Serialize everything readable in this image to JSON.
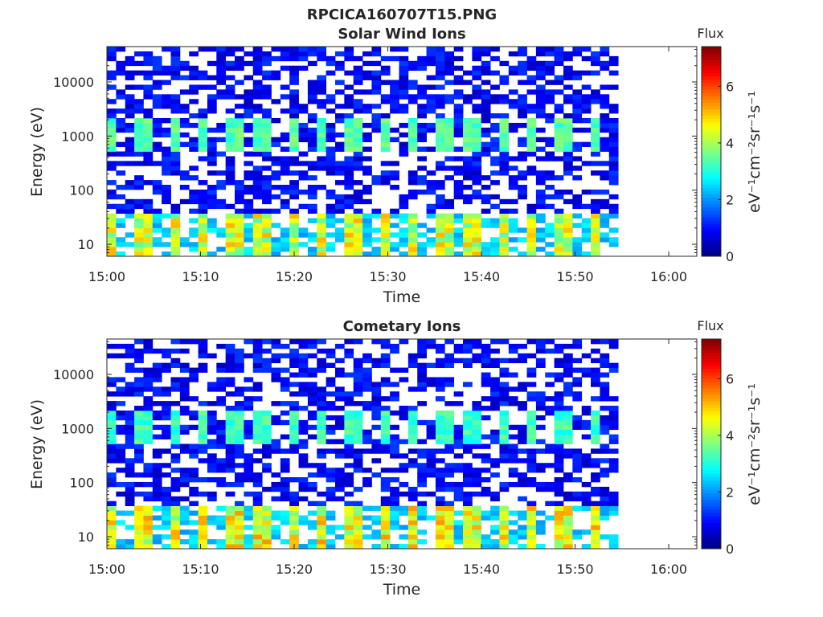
{
  "figure_title": "RPCICA160707T15.PNG",
  "chart_data": [
    {
      "type": "heatmap",
      "title": "Solar Wind Ions",
      "xlabel": "Time",
      "ylabel": "Energy (eV)",
      "x_tick_labels": [
        "15:00",
        "15:10",
        "15:20",
        "15:30",
        "15:40",
        "15:50",
        "16:00"
      ],
      "x_tick_minutes": [
        0,
        10,
        20,
        30,
        40,
        50,
        60
      ],
      "xlim_minutes": [
        0,
        63
      ],
      "data_end_minute": 54.6,
      "y_scale": "log",
      "y_tick_labels": [
        "10",
        "100",
        "1000",
        "10000"
      ],
      "y_tick_values": [
        10,
        100,
        1000,
        10000
      ],
      "ylim": [
        6,
        45000
      ],
      "colorbar": {
        "label": "Flux",
        "unit": "eV⁻¹cm⁻²sr⁻¹s⁻¹",
        "range": [
          0,
          7.4
        ],
        "tick_labels": [
          "0",
          "2",
          "4",
          "6"
        ],
        "tick_values": [
          0,
          2,
          4,
          6
        ],
        "colormap": "jet"
      },
      "pattern": {
        "burst_period_minutes": 3.2,
        "beam_1kev_energy_range": [
          500,
          2200
        ],
        "beam_1kev_peak_flux": 3.8,
        "low_energy_band_range": [
          6,
          35
        ],
        "low_energy_peak_flux": 5.2,
        "background_flux": 1.0
      }
    },
    {
      "type": "heatmap",
      "title": "Cometary Ions",
      "xlabel": "Time",
      "ylabel": "Energy (eV)",
      "x_tick_labels": [
        "15:00",
        "15:10",
        "15:20",
        "15:30",
        "15:40",
        "15:50",
        "16:00"
      ],
      "x_tick_minutes": [
        0,
        10,
        20,
        30,
        40,
        50,
        60
      ],
      "xlim_minutes": [
        0,
        63
      ],
      "data_end_minute": 54.6,
      "y_scale": "log",
      "y_tick_labels": [
        "10",
        "100",
        "1000",
        "10000"
      ],
      "y_tick_values": [
        10,
        100,
        1000,
        10000
      ],
      "ylim": [
        6,
        45000
      ],
      "colorbar": {
        "label": "Flux",
        "unit": "eV⁻¹cm⁻²sr⁻¹s⁻¹",
        "range": [
          0,
          7.4
        ],
        "tick_labels": [
          "0",
          "2",
          "4",
          "6"
        ],
        "tick_values": [
          0,
          2,
          4,
          6
        ],
        "colormap": "jet"
      },
      "pattern": {
        "burst_period_minutes": 3.2,
        "beam_1kev_energy_range": [
          500,
          2200
        ],
        "beam_1kev_peak_flux": 3.6,
        "low_energy_band_range": [
          6,
          35
        ],
        "low_energy_peak_flux": 5.4,
        "background_flux": 1.0
      }
    }
  ]
}
